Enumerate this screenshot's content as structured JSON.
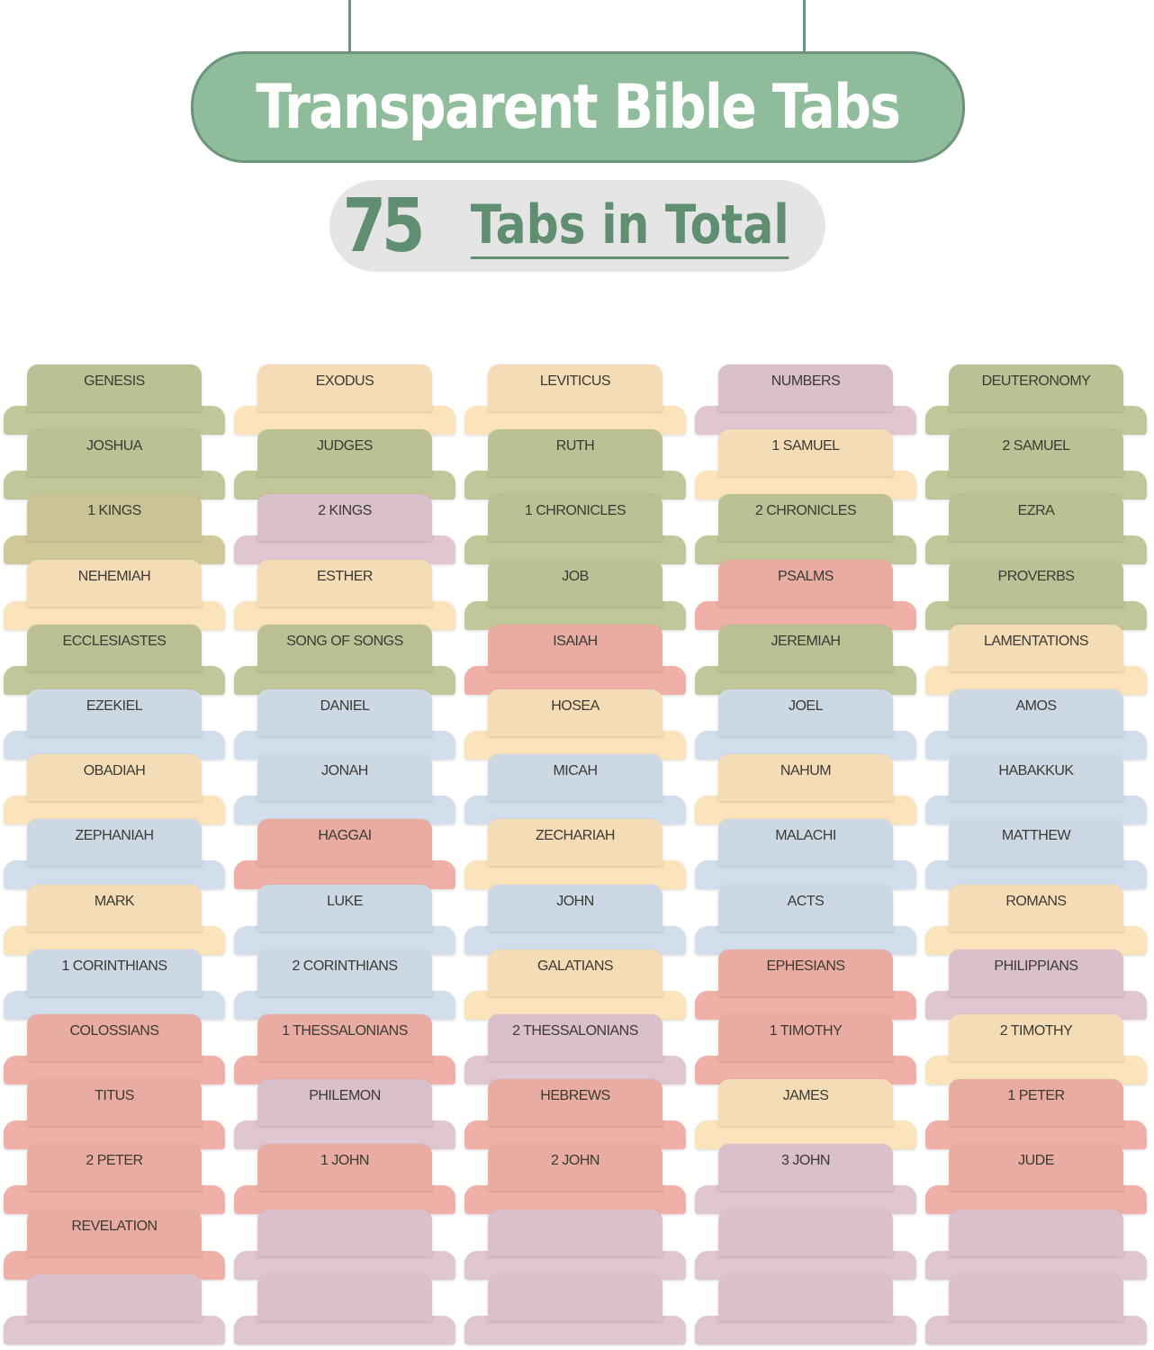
{
  "header": {
    "title": "Transparent Bible Tabs",
    "count": "75",
    "count_label": "Tabs in Total"
  },
  "colors": {
    "G": "#bcc195",
    "P": "#f4dcb7",
    "U": "#d9c0ca",
    "R": "#e8aca2",
    "B": "#cdd8e5",
    "K": "#c9c395",
    "accent": "#8fbc9b"
  },
  "tabs": [
    [
      "GENESIS",
      "G"
    ],
    [
      "EXODUS",
      "P"
    ],
    [
      "LEVITICUS",
      "P"
    ],
    [
      "NUMBERS",
      "U"
    ],
    [
      "DEUTERONOMY",
      "G"
    ],
    [
      "JOSHUA",
      "G"
    ],
    [
      "JUDGES",
      "G"
    ],
    [
      "RUTH",
      "G"
    ],
    [
      "1 SAMUEL",
      "P"
    ],
    [
      "2 SAMUEL",
      "G"
    ],
    [
      "1 KINGS",
      "K"
    ],
    [
      "2 KINGS",
      "U"
    ],
    [
      "1 CHRONICLES",
      "G"
    ],
    [
      "2 CHRONICLES",
      "G"
    ],
    [
      "EZRA",
      "G"
    ],
    [
      "NEHEMIAH",
      "P"
    ],
    [
      "ESTHER",
      "P"
    ],
    [
      "JOB",
      "G"
    ],
    [
      "PSALMS",
      "R"
    ],
    [
      "PROVERBS",
      "G"
    ],
    [
      "ECCLESIASTES",
      "G"
    ],
    [
      "SONG OF SONGS",
      "G"
    ],
    [
      "ISAIAH",
      "R"
    ],
    [
      "JEREMIAH",
      "G"
    ],
    [
      "LAMENTATIONS",
      "P"
    ],
    [
      "EZEKIEL",
      "B"
    ],
    [
      "DANIEL",
      "B"
    ],
    [
      "HOSEA",
      "P"
    ],
    [
      "JOEL",
      "B"
    ],
    [
      "AMOS",
      "B"
    ],
    [
      "OBADIAH",
      "P"
    ],
    [
      "JONAH",
      "B"
    ],
    [
      "MICAH",
      "B"
    ],
    [
      "NAHUM",
      "P"
    ],
    [
      "HABAKKUK",
      "B"
    ],
    [
      "ZEPHANIAH",
      "B"
    ],
    [
      "HAGGAI",
      "R"
    ],
    [
      "ZECHARIAH",
      "P"
    ],
    [
      "MALACHI",
      "B"
    ],
    [
      "MATTHEW",
      "B"
    ],
    [
      "MARK",
      "P"
    ],
    [
      "LUKE",
      "B"
    ],
    [
      "JOHN",
      "B"
    ],
    [
      "ACTS",
      "B"
    ],
    [
      "ROMANS",
      "P"
    ],
    [
      "1 CORINTHIANS",
      "B"
    ],
    [
      "2 CORINTHIANS",
      "B"
    ],
    [
      "GALATIANS",
      "P"
    ],
    [
      "EPHESIANS",
      "R"
    ],
    [
      "PHILIPPIANS",
      "U"
    ],
    [
      "COLOSSIANS",
      "R"
    ],
    [
      "1 THESSALONIANS",
      "R"
    ],
    [
      "2 THESSALONIANS",
      "U"
    ],
    [
      "1 TIMOTHY",
      "R"
    ],
    [
      "2 TIMOTHY",
      "P"
    ],
    [
      "TITUS",
      "R"
    ],
    [
      "PHILEMON",
      "U"
    ],
    [
      "HEBREWS",
      "R"
    ],
    [
      "JAMES",
      "P"
    ],
    [
      "1 PETER",
      "R"
    ],
    [
      "2 PETER",
      "R"
    ],
    [
      "1 JOHN",
      "R"
    ],
    [
      "2 JOHN",
      "R"
    ],
    [
      "3 JOHN",
      "U"
    ],
    [
      "JUDE",
      "R"
    ],
    [
      "REVELATION",
      "R"
    ],
    [
      "",
      "U"
    ],
    [
      "",
      "U"
    ],
    [
      "",
      "U"
    ],
    [
      "",
      "U"
    ],
    [
      "",
      "U"
    ],
    [
      "",
      "U"
    ],
    [
      "",
      "U"
    ],
    [
      "",
      "U"
    ],
    [
      "",
      "U"
    ]
  ]
}
